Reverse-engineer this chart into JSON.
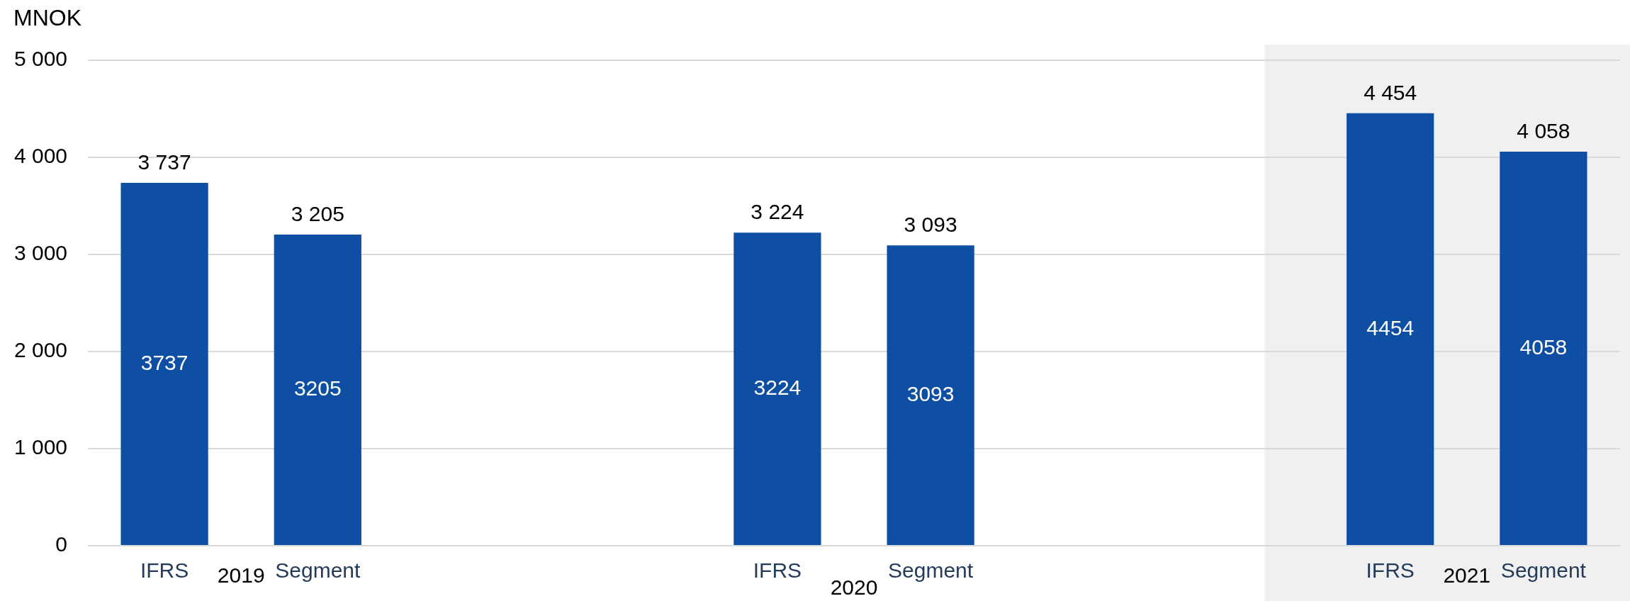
{
  "chart_data": {
    "type": "bar",
    "ylabel": "MNOK",
    "categories": [
      "2019",
      "2020",
      "2021"
    ],
    "series": [
      {
        "name": "IFRS",
        "color": "#0e4fa4",
        "values": [
          3737,
          3224,
          4454
        ]
      },
      {
        "name": "Segment",
        "color": "#0e4fa4",
        "values": [
          3205,
          3093,
          4058
        ]
      }
    ],
    "ylim": [
      0,
      5000
    ],
    "yticks": [
      0,
      {
        "value": 1000,
        "label": "1 000"
      },
      {
        "value": 2000,
        "label": "2 000"
      },
      {
        "value": 3000,
        "label": "3 000"
      },
      {
        "value": 4000,
        "label": "4 000"
      },
      {
        "value": 5000,
        "label": "5 000"
      }
    ],
    "grid": "y",
    "data_labels": true,
    "annotations": [
      "3737",
      "3205",
      "3224",
      "3093",
      "4454",
      "4058"
    ],
    "bands": [
      {
        "axis": "x",
        "from": "2021",
        "to": "2021",
        "color": "#f0f0f0"
      }
    ]
  }
}
